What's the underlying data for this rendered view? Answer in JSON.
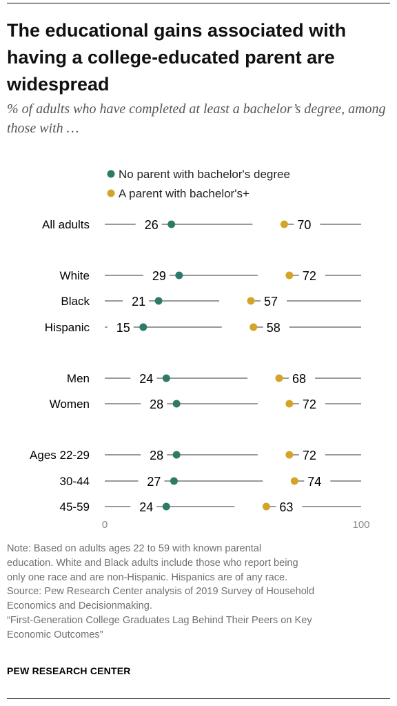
{
  "title": "The educational gains associated with having a college-educated parent are widespread",
  "subtitle": "% of adults who have completed at least a bachelor’s degree, among those with …",
  "chart_data": {
    "type": "dot",
    "x_range": [
      0,
      100
    ],
    "x_ticks": [
      "0",
      "100"
    ],
    "colors": {
      "no_parent": "#2e7a68",
      "parent": "#d4a427",
      "line": "#999999"
    },
    "series": [
      {
        "name": "No parent with bachelor's degree",
        "key": "no_parent"
      },
      {
        "name": "A parent with bachelor's+",
        "key": "parent"
      }
    ],
    "rows": [
      {
        "label": "All adults",
        "no_parent": 26,
        "parent": 70
      },
      {
        "label": "White",
        "no_parent": 29,
        "parent": 72
      },
      {
        "label": "Black",
        "no_parent": 21,
        "parent": 57
      },
      {
        "label": "Hispanic",
        "no_parent": 15,
        "parent": 58
      },
      {
        "label": "Men",
        "no_parent": 24,
        "parent": 68
      },
      {
        "label": "Women",
        "no_parent": 28,
        "parent": 72
      },
      {
        "label": "Ages 22-29",
        "no_parent": 28,
        "parent": 72
      },
      {
        "label": "30-44",
        "no_parent": 27,
        "parent": 74
      },
      {
        "label": "45-59",
        "no_parent": 24,
        "parent": 63
      }
    ]
  },
  "note": [
    "Note: Based on adults ages 22 to 59 with known parental",
    "education. White and Black adults include those who report being",
    "only one race and are non-Hispanic. Hispanics are of any race.",
    "Source: Pew Research Center analysis of 2019 Survey of Household",
    "Economics and Decisionmaking.",
    "“First-Generation College Graduates Lag Behind Their Peers on Key",
    "Economic Outcomes”"
  ],
  "credit": "PEW RESEARCH CENTER"
}
